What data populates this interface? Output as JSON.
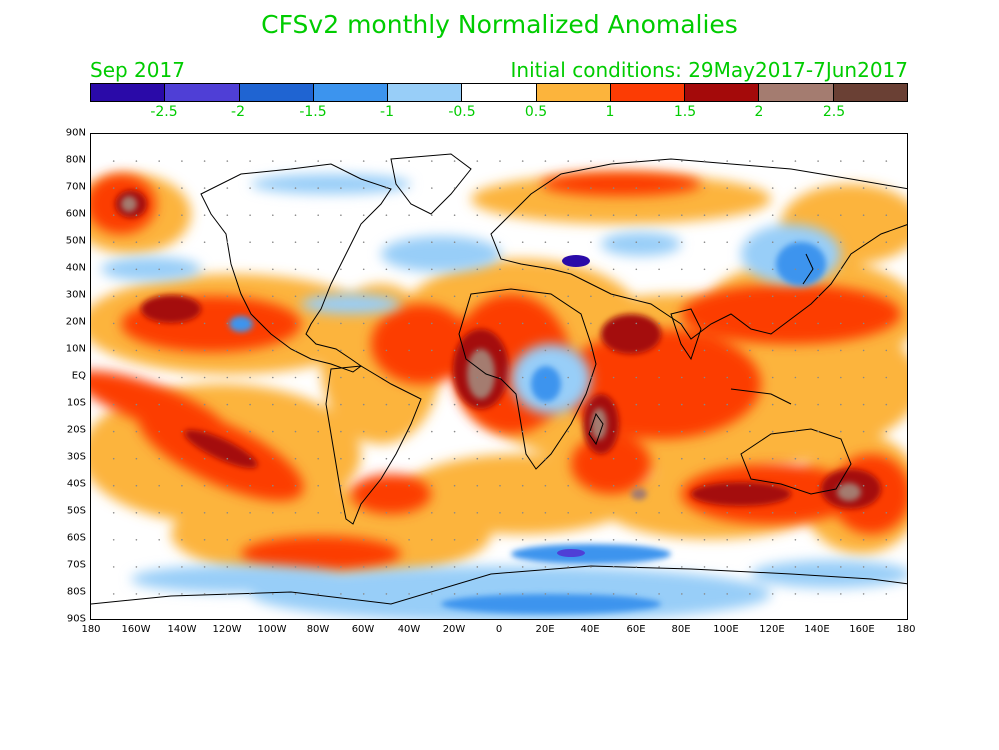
{
  "header": {
    "title": "CFSv2 monthly Normalized Anomalies",
    "month": "Sep 2017",
    "initial_conditions": "Initial conditions: 29May2017-7Jun2017"
  },
  "colorbar": {
    "colors": [
      "#2a0aa8",
      "#4f3fd6",
      "#1f64d2",
      "#3c94ee",
      "#98cef8",
      "#ffffff",
      "#fcb43c",
      "#fc3c04",
      "#a40a0a",
      "#a47c70",
      "#6a4034"
    ],
    "labels": [
      "-2.5",
      "-2",
      "-1.5",
      "-1",
      "-0.5",
      "0.5",
      "1",
      "1.5",
      "2",
      "2.5"
    ]
  },
  "axes": {
    "lat_labels": [
      "90N",
      "80N",
      "70N",
      "60N",
      "50N",
      "40N",
      "30N",
      "20N",
      "10N",
      "EQ",
      "10S",
      "20S",
      "30S",
      "40S",
      "50S",
      "60S",
      "70S",
      "80S",
      "90S"
    ],
    "lon_labels": [
      "180",
      "160W",
      "140W",
      "120W",
      "100W",
      "80W",
      "60W",
      "40W",
      "20W",
      "0",
      "20E",
      "40E",
      "60E",
      "80E",
      "100E",
      "120E",
      "140E",
      "160E",
      "180"
    ]
  }
}
